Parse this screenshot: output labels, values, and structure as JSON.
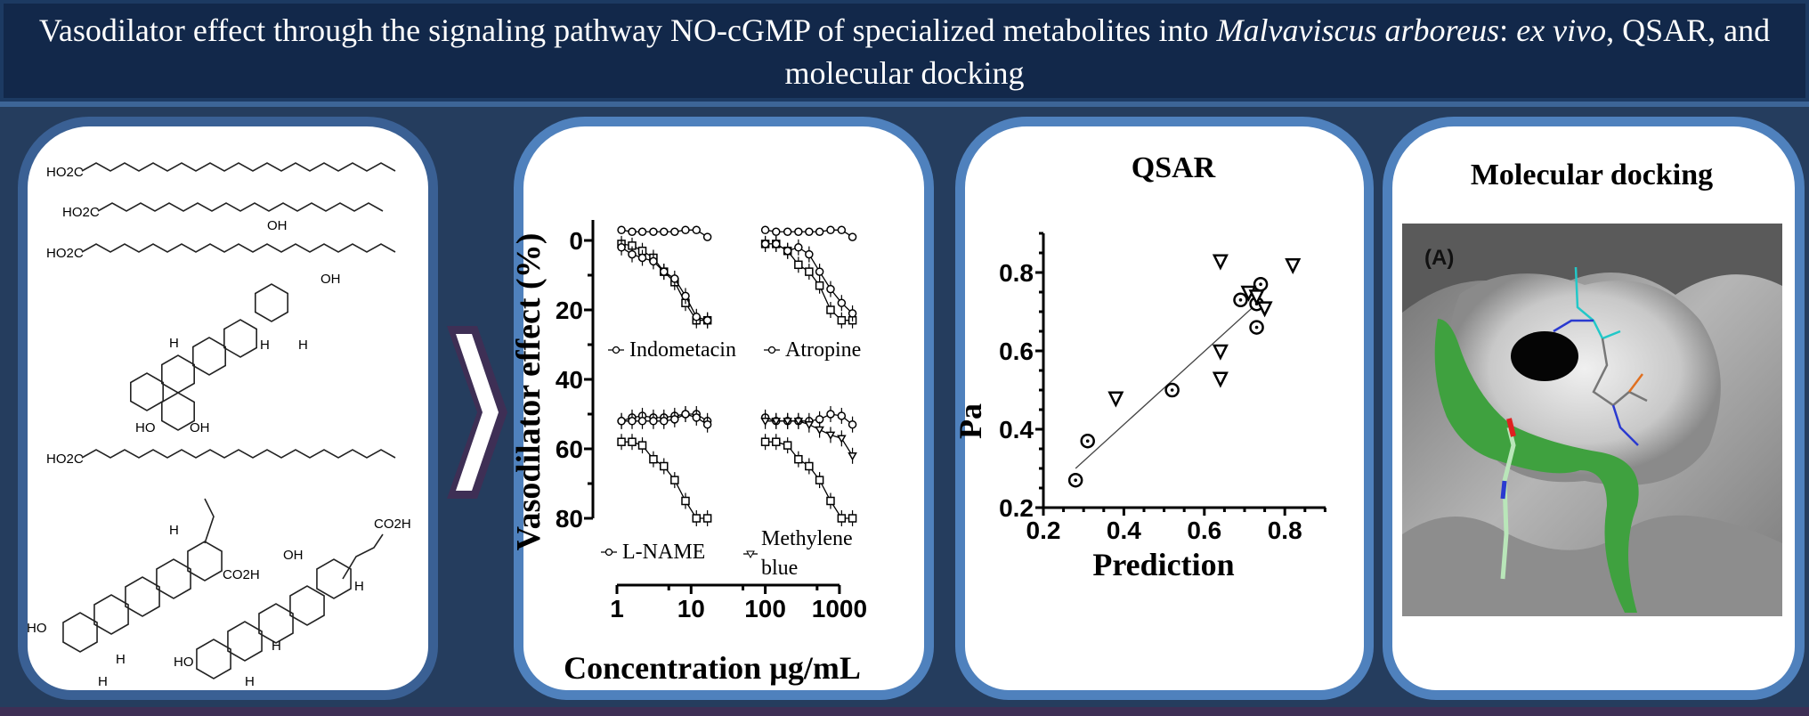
{
  "header": {
    "title_part1": "Vasodilator effect through the signaling pathway NO-cGMP of specialized metabolites into ",
    "title_italic1": "Malvaviscus arboreus",
    "title_part2": ": ",
    "title_italic2": "ex vivo",
    "title_part3": ", QSAR, and molecular docking"
  },
  "structures": {
    "labels": [
      "HO2C",
      "HO2C",
      "HO2C",
      "OH",
      "OH",
      "H",
      "H",
      "H",
      "HO",
      "OH",
      "HO2C",
      "H",
      "CO2H",
      "H",
      "HO",
      "H",
      "OH",
      "CO2H",
      "H",
      "H",
      "HO",
      "H"
    ]
  },
  "arrow": {
    "icon": "chevron-right-icon"
  },
  "docking": {
    "title": "Molecular docking",
    "panel_label": "(A)",
    "colors": {
      "surface": "#9a9a9a",
      "binding_region": "#3fa13f",
      "ligand_carbon": "#22c8c8",
      "nitrogen": "#2a3ad0",
      "oxygen": "#e02020",
      "phosphorus": "#e07020"
    }
  },
  "chart_data": [
    {
      "type": "line",
      "title": "",
      "ylabel": "Vasodilator effect (%)",
      "xlabel": "Concentration µg/mL",
      "x_scale": "log",
      "y_inverted": true,
      "ylim": [
        0,
        80
      ],
      "yticks": [
        "0",
        "20",
        "40",
        "60",
        "80"
      ],
      "xticks": [
        "1",
        "10",
        "100",
        "1000"
      ],
      "panels": [
        {
          "legend": "Indometacin",
          "x": [
            1.15,
            1.6,
            2.2,
            3.1,
            4.3,
            6.0,
            8.4,
            11.8,
            16.6
          ],
          "series": [
            {
              "marker": "circle",
              "values": [
                -3,
                -2.5,
                -2.5,
                -2.5,
                -2.5,
                -2.5,
                -3,
                -3,
                -1
              ]
            },
            {
              "marker": "square",
              "values": [
                1,
                1.5,
                3,
                5,
                9,
                12,
                18,
                23,
                23
              ]
            },
            {
              "marker": "circle",
              "values": [
                2,
                4,
                5,
                6,
                9,
                11,
                16,
                22,
                23
              ]
            }
          ]
        },
        {
          "legend": "Atropine",
          "x": [
            100,
            140,
            200,
            280,
            390,
            540,
            760,
            1070,
            1500
          ],
          "series": [
            {
              "marker": "circle",
              "values": [
                -3,
                -2.5,
                -2.5,
                -2.5,
                -2.5,
                -2.5,
                -3,
                -3,
                -1
              ]
            },
            {
              "marker": "square",
              "values": [
                1,
                1,
                3,
                7,
                9,
                13,
                20,
                23,
                23
              ]
            },
            {
              "marker": "circle",
              "values": [
                1,
                1,
                3,
                2,
                4,
                9,
                14,
                18,
                21
              ]
            }
          ]
        },
        {
          "legend": "L-NAME",
          "x": [
            1.15,
            1.6,
            2.2,
            3.1,
            4.3,
            6.0,
            8.4,
            11.8,
            16.6
          ],
          "series": [
            {
              "marker": "circle",
              "values": [
                52,
                51,
                50.5,
                51,
                51,
                50.5,
                50,
                50,
                52
              ]
            },
            {
              "marker": "circle",
              "values": [
                52,
                52,
                52,
                52,
                52,
                51.5,
                50,
                51,
                53
              ]
            },
            {
              "marker": "square",
              "values": [
                58,
                58,
                59,
                63,
                65,
                69,
                75,
                80,
                80
              ]
            }
          ]
        },
        {
          "legend": "Methylene blue",
          "x": [
            100,
            140,
            200,
            280,
            390,
            540,
            760,
            1070,
            1500
          ],
          "series": [
            {
              "marker": "circle",
              "values": [
                51,
                52,
                52,
                52,
                52,
                51.5,
                50,
                50.5,
                53
              ]
            },
            {
              "marker": "triangle",
              "values": [
                52,
                52,
                52,
                52,
                53,
                54.5,
                56,
                57,
                62
              ]
            },
            {
              "marker": "square",
              "values": [
                58,
                58,
                59,
                63,
                65,
                69,
                75,
                80,
                80
              ]
            }
          ]
        }
      ]
    },
    {
      "type": "scatter",
      "title": "QSAR",
      "xlabel": "Prediction",
      "ylabel": "Pa",
      "xlim": [
        0.2,
        0.9
      ],
      "ylim": [
        0.2,
        0.9
      ],
      "xticks": [
        "0.2",
        "0.4",
        "0.6",
        "0.8"
      ],
      "yticks": [
        "0.2",
        "0.4",
        "0.6",
        "0.8"
      ],
      "series": [
        {
          "marker": "circle-dot",
          "points": [
            [
              0.28,
              0.27
            ],
            [
              0.31,
              0.37
            ],
            [
              0.52,
              0.5
            ],
            [
              0.69,
              0.73
            ],
            [
              0.73,
              0.72
            ],
            [
              0.74,
              0.77
            ],
            [
              0.73,
              0.66
            ]
          ]
        },
        {
          "marker": "triangle-down",
          "points": [
            [
              0.38,
              0.48
            ],
            [
              0.64,
              0.83
            ],
            [
              0.82,
              0.82
            ],
            [
              0.64,
              0.6
            ],
            [
              0.64,
              0.53
            ],
            [
              0.71,
              0.75
            ],
            [
              0.73,
              0.74
            ],
            [
              0.75,
              0.71
            ]
          ]
        }
      ],
      "fit_line": [
        [
          0.28,
          0.3
        ],
        [
          0.73,
          0.72
        ]
      ]
    }
  ]
}
